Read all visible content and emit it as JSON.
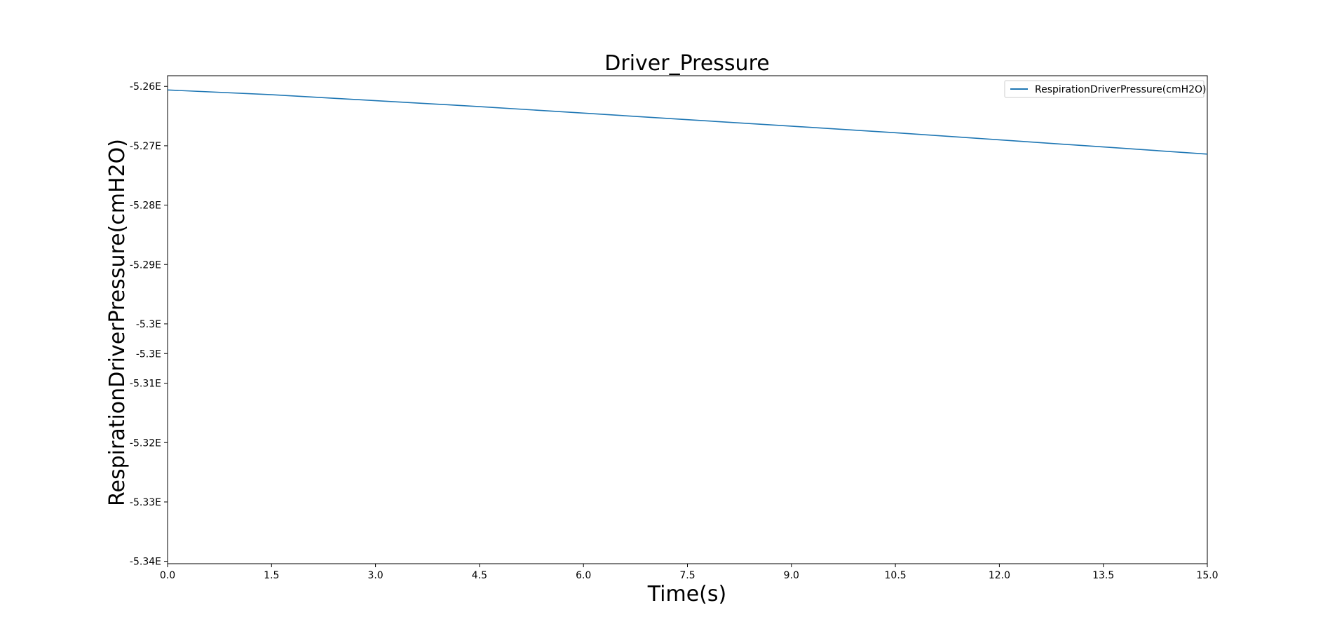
{
  "chart_data": {
    "type": "line",
    "title": "Driver_Pressure",
    "xlabel": "Time(s)",
    "ylabel": "RespirationDriverPressure(cmH2O)",
    "xlim": [
      0,
      15
    ],
    "ylim": [
      -5.3404,
      -5.2582
    ],
    "x_ticks": [
      0,
      1.5,
      3,
      4.5,
      6,
      7.5,
      9,
      10.5,
      12,
      13.5,
      15
    ],
    "x_tick_labels": [
      "0.0",
      "1.5",
      "3.0",
      "4.5",
      "6.0",
      "7.5",
      "9.0",
      "10.5",
      "12.0",
      "13.5",
      "15.0"
    ],
    "y_ticks": [
      -5.26,
      -5.27,
      -5.28,
      -5.29,
      -5.3,
      -5.305,
      -5.31,
      -5.32,
      -5.33,
      -5.34
    ],
    "y_tick_labels": [
      "-5.26E",
      "-5.27E",
      "-5.28E",
      "-5.29E",
      "-5.3E",
      "-5.3E",
      "-5.31E",
      "-5.32E",
      "-5.33E",
      "-5.34E"
    ],
    "grid": false,
    "legend_position": "top-right",
    "series": [
      {
        "name": "RespirationDriverPressure(cmH2O)",
        "color": "#1f77b4",
        "x": [
          0,
          1.5,
          3,
          4.5,
          6,
          7.5,
          9,
          10.5,
          12,
          13.5,
          15
        ],
        "y": [
          -5.2606,
          -5.2614,
          -5.2624,
          -5.2634,
          -5.2645,
          -5.2656,
          -5.2667,
          -5.2678,
          -5.269,
          -5.2702,
          -5.2714
        ]
      }
    ]
  }
}
